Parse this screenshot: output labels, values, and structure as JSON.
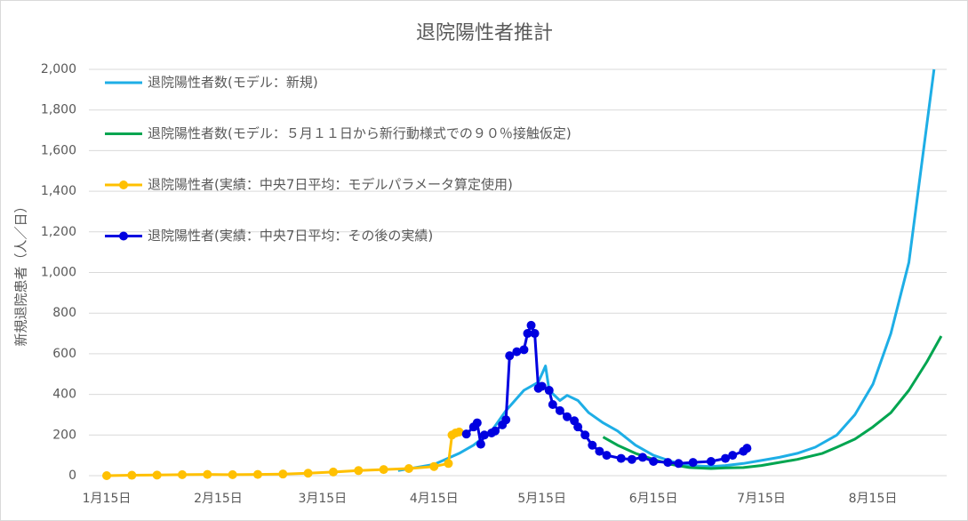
{
  "chart_data": {
    "type": "line",
    "title": "退院陽性者推計",
    "y_label": "新規退院患者（人／日）",
    "xticks": [
      "1月15日",
      "2月15日",
      "3月15日",
      "4月15日",
      "5月15日",
      "6月15日",
      "7月15日",
      "8月15日"
    ],
    "ylim": [
      0,
      2000
    ],
    "yticks": [
      0,
      200,
      400,
      600,
      800,
      {
        "value": 1000,
        "label": "1,000"
      },
      {
        "value": 1200,
        "label": "1,200"
      },
      {
        "value": 1400,
        "label": "1,400"
      },
      {
        "value": 1600,
        "label": "1,600"
      },
      {
        "value": 1800,
        "label": "1,800"
      },
      {
        "value": 2000,
        "label": "2,000"
      }
    ],
    "grid": true,
    "legend": "upper left",
    "series": [
      {
        "name": "退院陽性者数(モデル：新規)",
        "color": "#1eaee6",
        "marker": false,
        "x": [
          "4月5日",
          "4月15日",
          "4月22日",
          "4月26日",
          "5月1日",
          "5月5日",
          "5月10日",
          "5月14日",
          "5月16日",
          "5月17日",
          "5月20日",
          "5月22日",
          "5月25日",
          "5月28日",
          "6月1日",
          "6月5日",
          "6月10日",
          "6月15日",
          "6月20日",
          "6月25日",
          "7月1日",
          "7月5日",
          "7月10日",
          "7月15日",
          "7月20日",
          "7月25日",
          "7月30日",
          "8月5日",
          "8月10日",
          "8月15日",
          "8月20日",
          "8月25日",
          "9月1日"
        ],
        "values": [
          25,
          55,
          110,
          150,
          220,
          320,
          420,
          460,
          540,
          420,
          370,
          395,
          370,
          310,
          260,
          220,
          150,
          100,
          70,
          50,
          45,
          50,
          60,
          75,
          90,
          110,
          140,
          200,
          300,
          450,
          700,
          1050,
          2000
        ]
      },
      {
        "name": "退院陽性者数(モデル：５月１１日から新行動様式での９０％接触仮定)",
        "color": "#00a550",
        "marker": false,
        "x": [
          "6月1日",
          "6月5日",
          "6月10日",
          "6月15日",
          "6月20日",
          "6月25日",
          "7月1日",
          "7月5日",
          "7月10日",
          "7月15日",
          "7月20日",
          "7月25日",
          "8月1日",
          "8月5日",
          "8月10日",
          "8月15日",
          "8月20日",
          "8月25日",
          "8月30日",
          "9月3日"
        ],
        "values": [
          190,
          150,
          110,
          80,
          55,
          40,
          35,
          38,
          40,
          50,
          65,
          80,
          110,
          140,
          180,
          240,
          310,
          420,
          560,
          687
        ]
      },
      {
        "name": "退院陽性者(実績：中央7日平均：モデルパラメータ算定使用)",
        "color": "#ffc000",
        "marker": true,
        "x": [
          "1月15日",
          "1月22日",
          "1月29日",
          "2月5日",
          "2月12日",
          "2月19日",
          "2月26日",
          "3月4日",
          "3月11日",
          "3月18日",
          "3月25日",
          "4月1日",
          "4月8日",
          "4月15日",
          "4月19日",
          "4月20日",
          "4月21日",
          "4月22日"
        ],
        "values": [
          0,
          2,
          3,
          5,
          6,
          5,
          6,
          8,
          12,
          18,
          25,
          30,
          35,
          45,
          60,
          200,
          210,
          215
        ]
      },
      {
        "name": "退院陽性者(実績：中央7日平均：その後の実績)",
        "color": "#0000e0",
        "marker": true,
        "x": [
          "4月24日",
          "4月26日",
          "4月27日",
          "4月28日",
          "4月29日",
          "5月1日",
          "5月2日",
          "5月4日",
          "5月5日",
          "5月6日",
          "5月8日",
          "5月10日",
          "5月11日",
          "5月12日",
          "5月13日",
          "5月14日",
          "5月15日",
          "5月17日",
          "5月18日",
          "5月20日",
          "5月22日",
          "5月24日",
          "5月25日",
          "5月27日",
          "5月29日",
          "5月31日",
          "6月2日",
          "6月6日",
          "6月9日",
          "6月12日",
          "6月15日",
          "6月19日",
          "6月22日",
          "6月26日",
          "7月1日",
          "7月5日",
          "7月7日",
          "7月10日",
          "7月11日"
        ],
        "values": [
          205,
          240,
          260,
          155,
          200,
          210,
          220,
          250,
          275,
          590,
          610,
          620,
          700,
          740,
          700,
          430,
          440,
          420,
          350,
          320,
          290,
          270,
          240,
          200,
          150,
          120,
          100,
          85,
          80,
          90,
          70,
          65,
          60,
          65,
          70,
          85,
          100,
          120,
          135
        ]
      }
    ]
  }
}
